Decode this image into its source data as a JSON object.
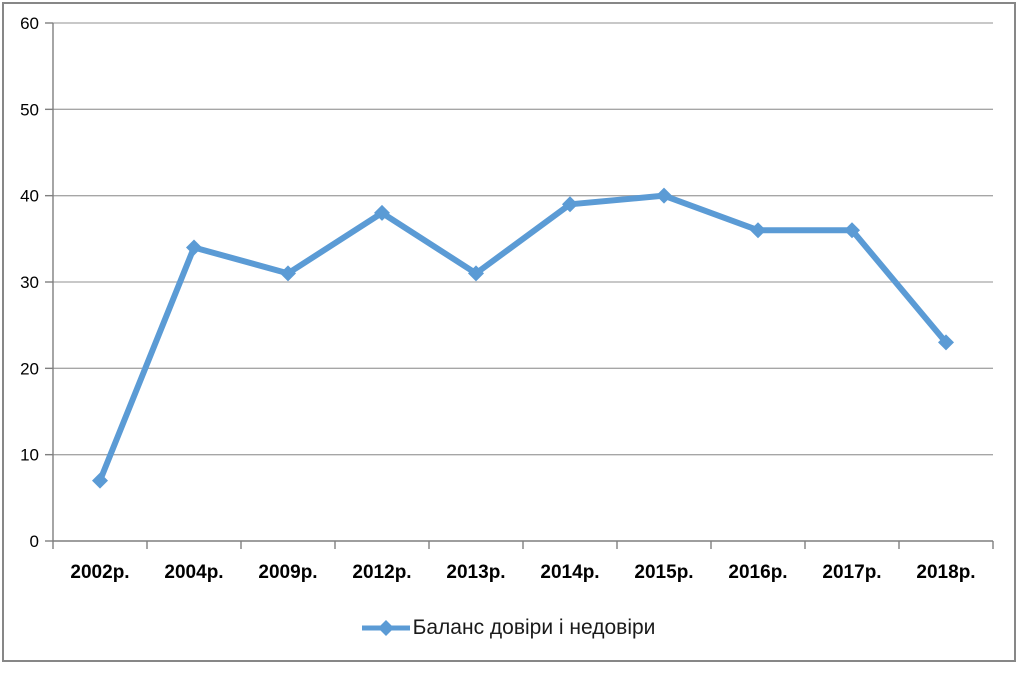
{
  "chart_data": {
    "type": "line",
    "title": "",
    "categories": [
      "2002р.",
      "2004р.",
      "2009р.",
      "2012р.",
      "2013р.",
      "2014р.",
      "2015р.",
      "2016р.",
      "2017р.",
      "2018р."
    ],
    "series": [
      {
        "name": "Баланс довіри і недовіри",
        "values": [
          7,
          34,
          31,
          38,
          31,
          39,
          40,
          36,
          36,
          23
        ]
      }
    ],
    "xlabel": "",
    "ylabel": "",
    "ylim": [
      0,
      60
    ],
    "y_ticks": [
      0,
      10,
      20,
      30,
      40,
      50,
      60
    ],
    "grid": true,
    "legend_position": "bottom",
    "marker": "diamond",
    "colors": {
      "line": "#5B9BD5",
      "gridline": "#A6A6A6",
      "axis": "#7F7F7F",
      "text": "#000000",
      "border": "#878787",
      "background": "#FFFFFF"
    }
  },
  "legend": {
    "label": "Баланс довіри і недовіри"
  }
}
